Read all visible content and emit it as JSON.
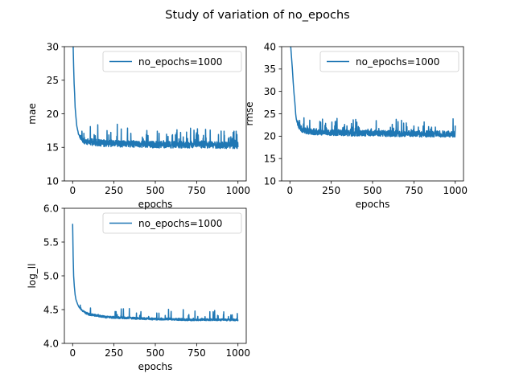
{
  "figure": {
    "suptitle": "Study of variation of no_epochs"
  },
  "chart_data": [
    {
      "type": "line",
      "xlabel": "epochs",
      "ylabel": "mae",
      "xlim": [
        -50,
        1050
      ],
      "ylim": [
        10,
        30
      ],
      "xticks": [
        0,
        250,
        500,
        750,
        1000
      ],
      "yticks": [
        10,
        15,
        20,
        25,
        30
      ],
      "legend_position": "top-right",
      "grid": false,
      "series": [
        {
          "name": "no_epochs=1000",
          "color": "#1f77b4",
          "points": [
            [
              0,
              31.0
            ],
            [
              3,
              30.2
            ],
            [
              6,
              27.0
            ],
            [
              9,
              24.5
            ],
            [
              12,
              23.0
            ],
            [
              15,
              21.0
            ],
            [
              20,
              19.5
            ],
            [
              25,
              18.2
            ],
            [
              30,
              17.6
            ],
            [
              35,
              17.0
            ],
            [
              40,
              16.8
            ],
            [
              50,
              16.3
            ],
            [
              70,
              16.0
            ],
            [
              100,
              15.8
            ],
            [
              150,
              15.7
            ],
            [
              200,
              15.6
            ],
            [
              250,
              15.6
            ],
            [
              300,
              15.5
            ],
            [
              400,
              15.5
            ],
            [
              500,
              15.4
            ],
            [
              600,
              15.4
            ],
            [
              700,
              15.4
            ],
            [
              800,
              15.4
            ],
            [
              900,
              15.3
            ],
            [
              1000,
              15.3
            ]
          ],
          "noise": {
            "type": "spiky",
            "base_amplitude": 0.5,
            "spike_amplitude": 2.5,
            "spike_rate": 0.08,
            "seed": 11
          }
        }
      ]
    },
    {
      "type": "line",
      "xlabel": "epochs",
      "ylabel": "rmse",
      "xlim": [
        -50,
        1050
      ],
      "ylim": [
        10,
        40
      ],
      "xticks": [
        0,
        250,
        500,
        750,
        1000
      ],
      "yticks": [
        10,
        15,
        20,
        25,
        30,
        35,
        40
      ],
      "legend_position": "top-right",
      "grid": false,
      "series": [
        {
          "name": "no_epochs=1000",
          "color": "#1f77b4",
          "points": [
            [
              0,
              42.0
            ],
            [
              5,
              40.0
            ],
            [
              10,
              37.5
            ],
            [
              15,
              35.0
            ],
            [
              20,
              32.0
            ],
            [
              25,
              29.5
            ],
            [
              30,
              27.5
            ],
            [
              35,
              25.0
            ],
            [
              40,
              23.5
            ],
            [
              50,
              22.3
            ],
            [
              70,
              21.6
            ],
            [
              100,
              21.2
            ],
            [
              150,
              21.0
            ],
            [
              200,
              20.9
            ],
            [
              300,
              20.8
            ],
            [
              400,
              20.7
            ],
            [
              500,
              20.7
            ],
            [
              600,
              20.6
            ],
            [
              700,
              20.6
            ],
            [
              800,
              20.5
            ],
            [
              900,
              20.5
            ],
            [
              1000,
              20.5
            ]
          ],
          "noise": {
            "type": "spiky",
            "base_amplitude": 0.7,
            "spike_amplitude": 2.8,
            "spike_rate": 0.08,
            "seed": 23
          }
        }
      ]
    },
    {
      "type": "line",
      "xlabel": "epochs",
      "ylabel": "log_ll",
      "xlim": [
        -50,
        1050
      ],
      "ylim": [
        4.0,
        6.0
      ],
      "xticks": [
        0,
        250,
        500,
        750,
        1000
      ],
      "yticks": [
        4.0,
        4.5,
        5.0,
        5.5,
        6.0
      ],
      "legend_position": "top-right",
      "grid": false,
      "series": [
        {
          "name": "no_epochs=1000",
          "color": "#1f77b4",
          "points": [
            [
              0,
              5.77
            ],
            [
              3,
              5.3
            ],
            [
              6,
              5.0
            ],
            [
              10,
              4.85
            ],
            [
              15,
              4.72
            ],
            [
              20,
              4.65
            ],
            [
              30,
              4.58
            ],
            [
              40,
              4.53
            ],
            [
              60,
              4.48
            ],
            [
              80,
              4.45
            ],
            [
              100,
              4.43
            ],
            [
              150,
              4.41
            ],
            [
              200,
              4.39
            ],
            [
              300,
              4.38
            ],
            [
              400,
              4.37
            ],
            [
              500,
              4.36
            ],
            [
              600,
              4.36
            ],
            [
              700,
              4.35
            ],
            [
              800,
              4.35
            ],
            [
              900,
              4.35
            ],
            [
              1000,
              4.35
            ]
          ],
          "noise": {
            "type": "spiky",
            "base_amplitude": 0.015,
            "spike_amplitude": 0.15,
            "spike_rate": 0.05,
            "seed": 37
          }
        }
      ]
    }
  ]
}
